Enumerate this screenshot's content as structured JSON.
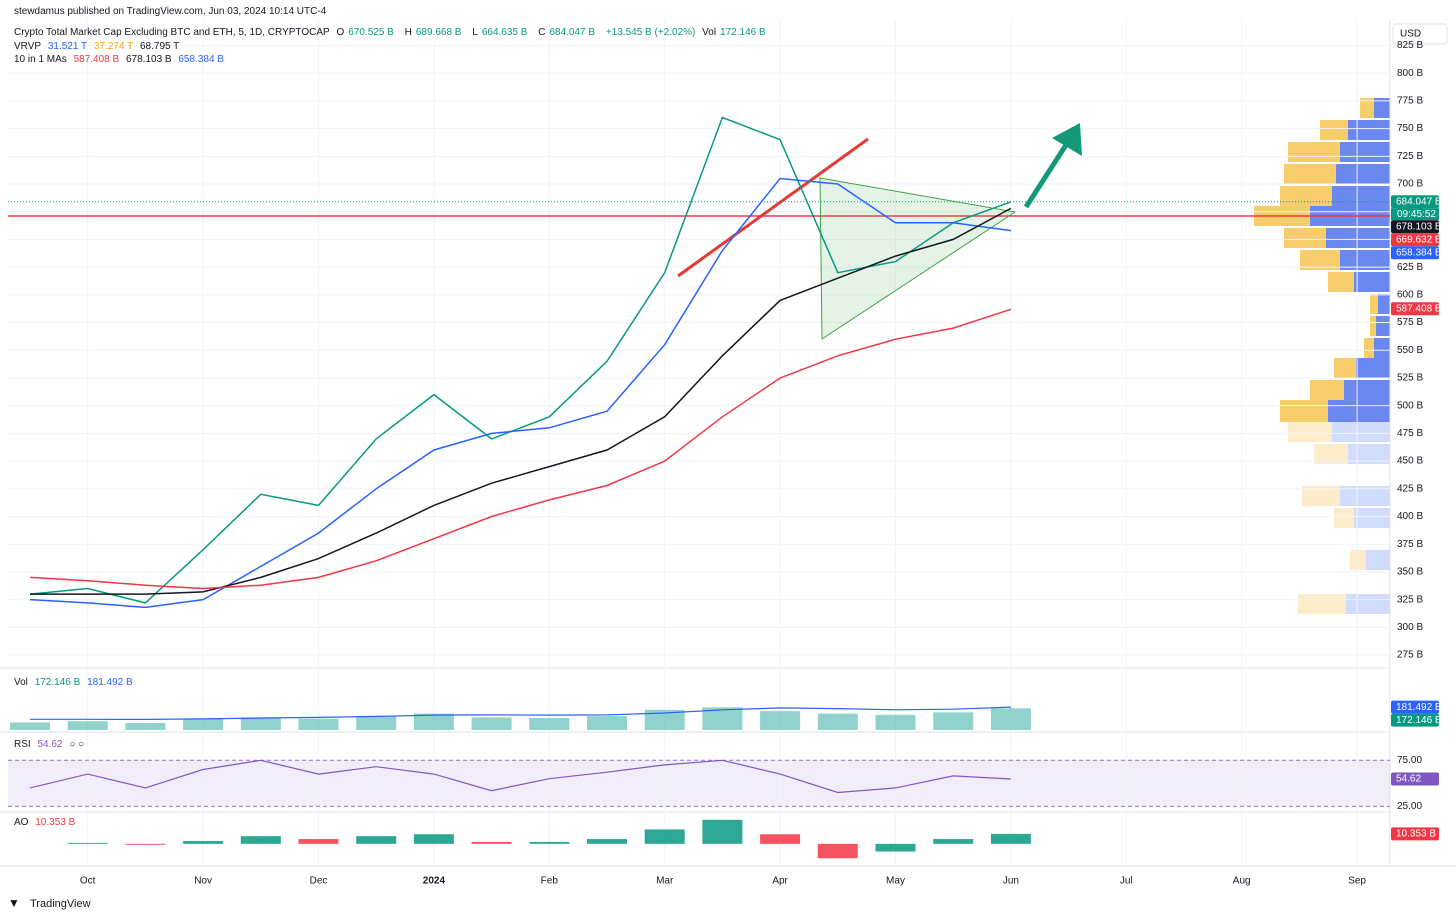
{
  "header": {
    "publisher": "stewdamus published on TradingView.com, Jun 03, 2024 10:14 UTC-4",
    "currency": "USD",
    "footer": "TradingView"
  },
  "legend": {
    "symbol": "Crypto Total Market Cap Excluding BTC and ETH, 5, 1D, CRYPTOCAP",
    "ohlc": [
      {
        "key": "O",
        "value": "670.525 B"
      },
      {
        "key": "H",
        "value": "689.668 B"
      },
      {
        "key": "L",
        "value": "664.635 B"
      },
      {
        "key": "C",
        "value": "684.047 B"
      }
    ],
    "change": "+13.545 B (+2.02%)",
    "vol_key": "Vol",
    "vol": "172.146 B",
    "vrvp": {
      "name": "VRVP",
      "values": [
        "31.521 T",
        "37.274 T",
        "68.795 T"
      ]
    },
    "mas": {
      "name": "10 in 1 MAs",
      "values": [
        "587.408 B",
        "678.103 B",
        "658.384 B"
      ]
    },
    "countdown": "09:45:52"
  },
  "chart_data": [
    {
      "type": "line",
      "categories": [
        null,
        "Oct",
        null,
        "Nov",
        null,
        "Dec",
        null,
        "2024",
        null,
        "Feb",
        null,
        "Mar",
        null,
        "Apr",
        null,
        "May",
        null,
        "Jun",
        null,
        "Jul",
        null,
        "Aug",
        null,
        "Sep",
        null
      ],
      "series": [
        {
          "color": "#089981",
          "values": [
            330,
            335,
            322,
            370,
            420,
            410,
            470,
            510,
            470,
            490,
            540,
            620,
            760,
            740,
            620,
            630,
            665,
            684,
            null,
            null,
            null,
            null,
            null,
            null,
            null
          ]
        },
        {
          "color": "#2962ff",
          "values": [
            325,
            322,
            318,
            325,
            355,
            385,
            425,
            460,
            475,
            480,
            495,
            555,
            640,
            705,
            700,
            665,
            665,
            658,
            null,
            null,
            null,
            null,
            null,
            null,
            null
          ]
        },
        {
          "color": "#131722",
          "values": [
            330,
            330,
            330,
            332,
            345,
            362,
            385,
            410,
            430,
            445,
            460,
            490,
            545,
            595,
            615,
            635,
            650,
            678,
            null,
            null,
            null,
            null,
            null,
            null,
            null
          ]
        },
        {
          "color": "#f23645",
          "values": [
            345,
            342,
            338,
            335,
            338,
            345,
            360,
            380,
            400,
            415,
            428,
            450,
            490,
            525,
            545,
            560,
            570,
            587,
            null,
            null,
            null,
            null,
            null,
            null,
            null
          ]
        }
      ],
      "ylim": [
        266,
        848
      ],
      "yticks": [
        {
          "value": 275,
          "label": "275 B"
        },
        {
          "value": 300,
          "label": "300 B"
        },
        {
          "value": 325,
          "label": "325 B"
        },
        {
          "value": 350,
          "label": "350 B"
        },
        {
          "value": 375,
          "label": "375 B"
        },
        {
          "value": 400,
          "label": "400 B"
        },
        {
          "value": 425,
          "label": "425 B"
        },
        {
          "value": 450,
          "label": "450 B"
        },
        {
          "value": 475,
          "label": "475 B"
        },
        {
          "value": 500,
          "label": "500 B"
        },
        {
          "value": 525,
          "label": "525 B"
        },
        {
          "value": 550,
          "label": "550 B"
        },
        {
          "value": 575,
          "label": "575 B"
        },
        {
          "value": 600,
          "label": "600 B"
        },
        {
          "value": 625,
          "label": "625 B"
        },
        {
          "value": 650,
          "label": "650 B"
        },
        {
          "value": 675,
          "label": "675 B"
        },
        {
          "value": 700,
          "label": "700 B"
        },
        {
          "value": 725,
          "label": "725 B"
        },
        {
          "value": 750,
          "label": "750 B"
        },
        {
          "value": 775,
          "label": "775 B"
        },
        {
          "value": 800,
          "label": "800 B"
        },
        {
          "value": 825,
          "label": "825 B"
        }
      ],
      "grid": true,
      "tags": [
        {
          "value": 684.047,
          "label": "684.047 B",
          "color": "#089981"
        },
        {
          "value": 678.103,
          "label": "678.103 B",
          "color": "#131722"
        },
        {
          "value": 669.632,
          "label": "669.632 B",
          "color": "#f23645"
        },
        {
          "value": 658.384,
          "label": "658.384 B",
          "color": "#2962ff"
        },
        {
          "value": 587.408,
          "label": "587.408 B",
          "color": "#f23645"
        }
      ]
    },
    {
      "type": "bar",
      "title": "Vol",
      "legend_values": [
        "172.146 B",
        "181.492 B"
      ],
      "color": "#26a69a",
      "values": [
        60,
        70,
        55,
        90,
        100,
        90,
        110,
        130,
        100,
        95,
        110,
        160,
        180,
        150,
        130,
        120,
        140,
        172.146,
        null,
        null,
        null,
        null,
        null,
        null,
        null
      ],
      "line_values": [
        85,
        85,
        84,
        88,
        95,
        100,
        108,
        118,
        120,
        118,
        120,
        135,
        160,
        175,
        170,
        160,
        165,
        181.492,
        null,
        null,
        null,
        null,
        null,
        null,
        null
      ],
      "line_color": "#2962ff",
      "ylim": [
        0,
        460
      ],
      "tags": [
        {
          "value": 181.492,
          "label": "181.492 B",
          "color": "#2962ff"
        },
        {
          "value": 172.146,
          "label": "172.146 B",
          "color": "#089981"
        }
      ]
    },
    {
      "type": "line",
      "title": "RSI",
      "legend_values": [
        "54.62"
      ],
      "color": "#7e57c2",
      "values": [
        45,
        60,
        45,
        65,
        75,
        60,
        68,
        60,
        42,
        55,
        62,
        70,
        75,
        60,
        40,
        45,
        58,
        54.62,
        null,
        null,
        null,
        null,
        null,
        null,
        null
      ],
      "ylim": [
        21,
        97
      ],
      "yticks": [
        {
          "value": 75,
          "label": "75.00"
        },
        {
          "value": 25,
          "label": "25.00"
        }
      ],
      "tags": [
        {
          "value": 54.62,
          "label": "54.62",
          "color": "#7e57c2"
        }
      ]
    },
    {
      "type": "bar",
      "title": "AO",
      "legend_values": [
        "10.353 B"
      ],
      "up_color": "#089981",
      "down_color": "#f23645",
      "values": [
        0,
        1,
        -1,
        3,
        8,
        5,
        8,
        10,
        2,
        2,
        5,
        15,
        25,
        10,
        -15,
        -8,
        5,
        10.353,
        null,
        null,
        null,
        null,
        null,
        null,
        null
      ],
      "ylim": [
        -22,
        30
      ],
      "tags": [
        {
          "value": 10.353,
          "label": "10.353 B",
          "color": "#f23645"
        }
      ]
    }
  ]
}
